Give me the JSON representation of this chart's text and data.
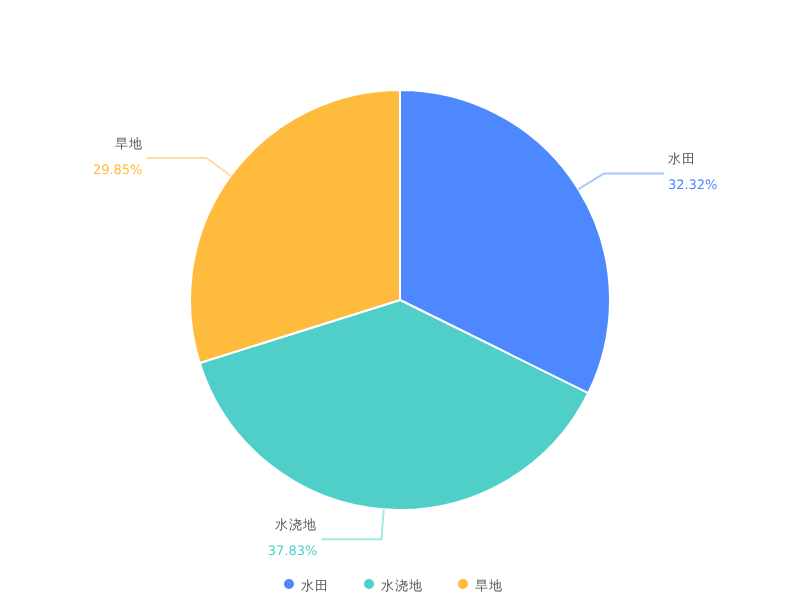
{
  "chart_data": {
    "type": "pie",
    "categories": [
      "水田",
      "水浇地",
      "旱地"
    ],
    "values": [
      32.32,
      37.83,
      29.85
    ],
    "colors": [
      "#4d88ff",
      "#50cfc8",
      "#ffbb3d"
    ],
    "value_labels": [
      "32.32%",
      "37.83%",
      "29.85%"
    ],
    "legend": "bottom"
  }
}
